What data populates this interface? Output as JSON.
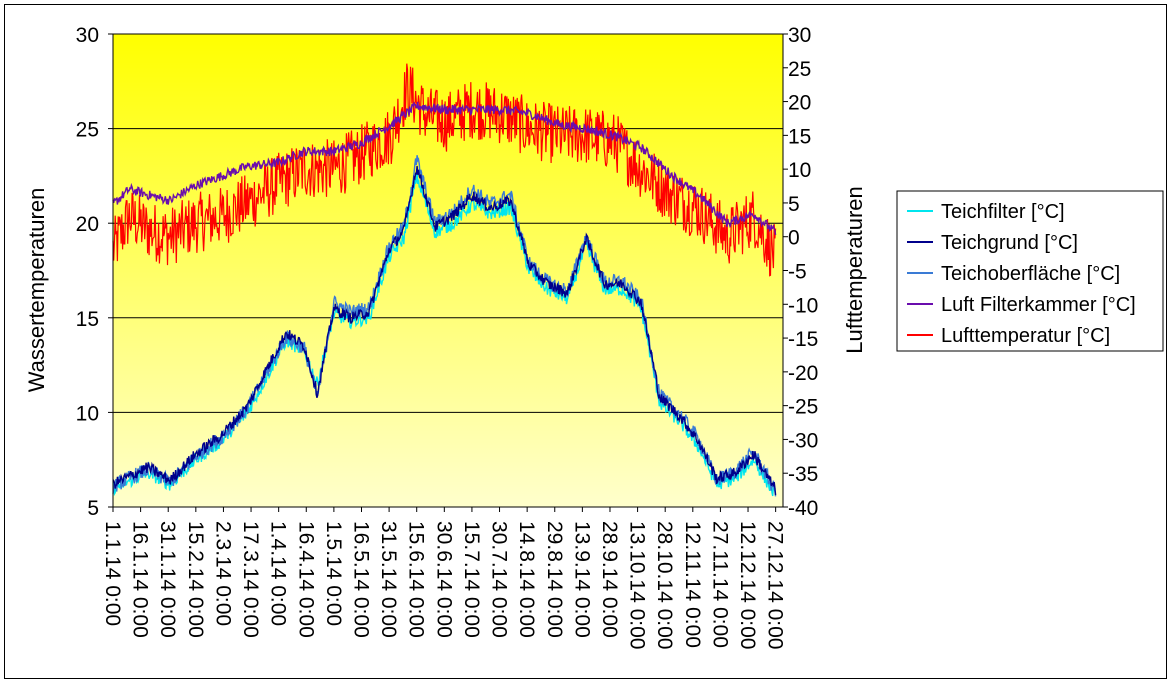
{
  "chart_data": {
    "type": "line",
    "xlabel": "",
    "y_left_label": "Wassertemperaturen",
    "y_right_label": "Lufttemperaturen",
    "y_left_range": [
      5,
      30
    ],
    "y_left_ticks": [
      "5",
      "10",
      "15",
      "20",
      "25",
      "30"
    ],
    "y_right_range": [
      -40,
      30
    ],
    "y_right_ticks": [
      "-40",
      "-35",
      "-30",
      "-25",
      "-20",
      "-15",
      "-10",
      "-5",
      "0",
      "5",
      "10",
      "15",
      "20",
      "25",
      "30"
    ],
    "x_range": [
      "1.1.14 0:00",
      "31.12.14 0:00"
    ],
    "x_tick_labels": [
      "1.1.14 0:00",
      "16.1.14 0:00",
      "31.1.14 0:00",
      "15.2.14 0:00",
      "2.3.14 0:00",
      "17.3.14 0:00",
      "1.4.14 0:00",
      "16.4.14 0:00",
      "1.5.14 0:00",
      "16.5.14 0:00",
      "31.5.14 0:00",
      "15.6.14 0:00",
      "30.6.14 0:00",
      "15.7.14 0:00",
      "30.7.14 0:00",
      "14.8.14 0:00",
      "29.8.14 0:00",
      "13.9.14 0:00",
      "28.9.14 0:00",
      "13.10.14 0:00",
      "28.10.14 0:00",
      "12.11.14 0:00",
      "27.11.14 0:00",
      "12.12.14 0:00",
      "27.12.14 0:00"
    ],
    "grid": "horizontal",
    "legend_position": "right",
    "series": [
      {
        "name": "Teichfilter [°C]",
        "axis": "left",
        "color": "#00e5ee",
        "x": [
          "1.1.14",
          "20.1.14",
          "1.2.14",
          "15.2.14",
          "1.3.14",
          "15.3.14",
          "25.3.14",
          "5.4.14",
          "15.4.14",
          "22.4.14",
          "1.5.14",
          "10.5.14",
          "20.5.14",
          "31.5.14",
          "8.6.14",
          "15.6.14",
          "25.6.14",
          "5.7.14",
          "15.7.14",
          "25.7.14",
          "5.8.14",
          "15.8.14",
          "25.8.14",
          "5.9.14",
          "15.9.14",
          "25.9.14",
          "5.10.14",
          "15.10.14",
          "25.10.14",
          "5.11.14",
          "15.11.14",
          "25.11.14",
          "5.12.14",
          "15.12.14",
          "27.12.14"
        ],
        "values": [
          6.0,
          6.8,
          6.2,
          7.5,
          8.5,
          10.0,
          11.8,
          13.8,
          13.2,
          11.5,
          15.2,
          14.8,
          15.0,
          18.2,
          19.2,
          22.5,
          19.5,
          20.0,
          21.0,
          20.5,
          20.8,
          17.5,
          16.5,
          16.0,
          18.8,
          16.5,
          16.5,
          15.5,
          10.5,
          9.5,
          8.2,
          6.2,
          6.5,
          7.5,
          5.6
        ]
      },
      {
        "name": "Teichgrund [°C]",
        "axis": "left",
        "color": "#00008b",
        "x": [
          "1.1.14",
          "20.1.14",
          "1.2.14",
          "15.2.14",
          "1.3.14",
          "15.3.14",
          "25.3.14",
          "5.4.14",
          "15.4.14",
          "22.4.14",
          "1.5.14",
          "10.5.14",
          "20.5.14",
          "31.5.14",
          "8.6.14",
          "15.6.14",
          "25.6.14",
          "5.7.14",
          "15.7.14",
          "25.7.14",
          "5.8.14",
          "15.8.14",
          "25.8.14",
          "5.9.14",
          "15.9.14",
          "25.9.14",
          "5.10.14",
          "15.10.14",
          "25.10.14",
          "5.11.14",
          "15.11.14",
          "25.11.14",
          "5.12.14",
          "15.12.14",
          "27.12.14"
        ],
        "values": [
          6.2,
          7.1,
          6.4,
          7.8,
          8.8,
          10.3,
          12.2,
          14.2,
          13.5,
          11.0,
          15.5,
          15.0,
          15.3,
          18.6,
          19.6,
          23.0,
          19.8,
          20.4,
          21.5,
          20.8,
          21.2,
          17.8,
          16.8,
          16.3,
          19.2,
          16.8,
          16.8,
          15.8,
          10.8,
          9.8,
          8.5,
          6.5,
          6.8,
          7.8,
          5.9
        ]
      },
      {
        "name": "Teichoberfläche [°C]",
        "axis": "left",
        "color": "#3a7bd5",
        "x": [
          "1.1.14",
          "20.1.14",
          "1.2.14",
          "15.2.14",
          "1.3.14",
          "15.3.14",
          "25.3.14",
          "5.4.14",
          "15.4.14",
          "22.4.14",
          "1.5.14",
          "10.5.14",
          "20.5.14",
          "31.5.14",
          "8.6.14",
          "15.6.14",
          "25.6.14",
          "5.7.14",
          "15.7.14",
          "25.7.14",
          "5.8.14",
          "15.8.14",
          "25.8.14",
          "5.9.14",
          "15.9.14",
          "25.9.14",
          "5.10.14",
          "15.10.14",
          "25.10.14",
          "5.11.14",
          "15.11.14",
          "25.11.14",
          "5.12.14",
          "15.12.14",
          "27.12.14"
        ],
        "values": [
          6.1,
          7.0,
          6.3,
          7.7,
          8.7,
          10.2,
          12.0,
          14.0,
          13.4,
          10.8,
          15.8,
          15.3,
          15.5,
          18.8,
          19.8,
          23.4,
          20.0,
          20.6,
          21.8,
          21.0,
          21.5,
          17.9,
          16.9,
          16.4,
          19.3,
          16.9,
          16.9,
          15.9,
          10.9,
          9.9,
          8.6,
          6.4,
          6.9,
          7.9,
          5.8
        ]
      },
      {
        "name": "Luft Filterkammer [°C]",
        "axis": "left",
        "color": "#6a0dad",
        "x": [
          "1.1.14",
          "10.1.14",
          "20.1.14",
          "1.2.14",
          "15.2.14",
          "1.3.14",
          "15.3.14",
          "1.4.14",
          "15.4.14",
          "1.5.14",
          "15.5.14",
          "1.6.14",
          "15.6.14",
          "1.7.14",
          "15.7.14",
          "1.8.14",
          "15.8.14",
          "1.9.14",
          "15.9.14",
          "1.10.14",
          "15.10.14",
          "1.11.14",
          "15.11.14",
          "1.12.14",
          "15.12.14",
          "27.12.14"
        ],
        "values": [
          21.0,
          21.8,
          21.5,
          21.2,
          22.0,
          22.5,
          23.0,
          23.2,
          23.8,
          23.8,
          24.2,
          25.2,
          26.2,
          26.0,
          26.0,
          26.0,
          25.8,
          25.2,
          25.0,
          24.6,
          24.0,
          22.5,
          21.5,
          20.0,
          20.5,
          19.5
        ]
      },
      {
        "name": "Lufttemperatur [°C]",
        "axis": "right",
        "color": "#ff0000",
        "x": [
          "1.1.14",
          "10.1.14",
          "20.1.14",
          "1.2.14",
          "15.2.14",
          "1.3.14",
          "15.3.14",
          "1.4.14",
          "15.4.14",
          "1.5.14",
          "15.5.14",
          "1.6.14",
          "10.6.14",
          "20.6.14",
          "1.7.14",
          "15.7.14",
          "1.8.14",
          "15.8.14",
          "1.9.14",
          "15.9.14",
          "1.10.14",
          "15.10.14",
          "1.11.14",
          "15.11.14",
          "1.12.14",
          "15.12.14",
          "27.12.14"
        ],
        "values": [
          -2,
          3,
          1,
          0,
          2,
          3,
          5,
          8,
          10,
          10,
          12,
          15,
          22,
          18,
          17,
          19,
          18,
          16,
          15,
          15,
          14,
          10,
          6,
          4,
          0,
          3,
          -3
        ]
      }
    ]
  }
}
